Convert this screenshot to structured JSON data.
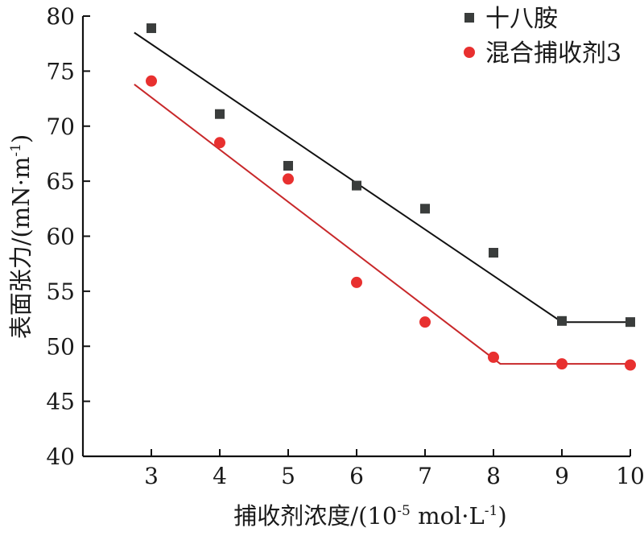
{
  "chart_data": {
    "type": "scatter",
    "xlabel": "捕收剂浓度/(10⁻⁵ mol·L⁻¹)",
    "xlabel_parts": {
      "prefix": "捕收剂浓度/(10",
      "sup1": "-5",
      "middle": " mol·L",
      "sup2": "-1",
      "suffix": ")"
    },
    "ylabel": "表面张力/(mN·m⁻¹)",
    "ylabel_parts": {
      "prefix": "表面张力/(mN·m",
      "sup": "-1",
      "suffix": ")"
    },
    "xlim": [
      2.0,
      10.0
    ],
    "ylim": [
      40,
      80
    ],
    "x_ticks": [
      3,
      4,
      5,
      6,
      7,
      8,
      9,
      10
    ],
    "y_ticks": [
      40,
      45,
      50,
      55,
      60,
      65,
      70,
      75,
      80
    ],
    "legend_position": "top-right",
    "grid": false,
    "series": [
      {
        "name": "十八胺",
        "marker": "square",
        "color": "#3a3d3c",
        "line_color": "#111111",
        "x": [
          3,
          4,
          5,
          6,
          7,
          8,
          9,
          10
        ],
        "y": [
          78.9,
          71.1,
          66.4,
          64.6,
          62.5,
          58.5,
          52.3,
          52.2
        ],
        "fit_line": [
          [
            2.75,
            78.5
          ],
          [
            9.0,
            52.2
          ],
          [
            10.05,
            52.2
          ]
        ]
      },
      {
        "name": "混合捕收剂3",
        "marker": "circle",
        "color": "#e8302f",
        "line_color": "#c8282a",
        "x": [
          3,
          4,
          5,
          6,
          7,
          8,
          9,
          10
        ],
        "y": [
          74.1,
          68.5,
          65.2,
          55.8,
          52.2,
          49.0,
          48.4,
          48.3
        ],
        "fit_line": [
          [
            2.75,
            73.8
          ],
          [
            8.1,
            48.4
          ],
          [
            10.05,
            48.4
          ]
        ]
      }
    ]
  }
}
